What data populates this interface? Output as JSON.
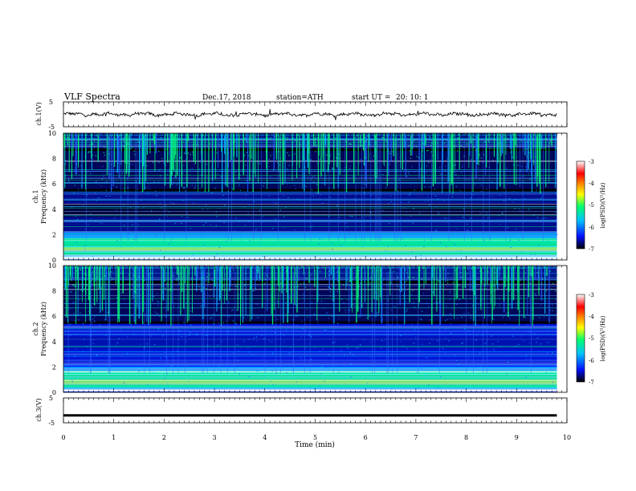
{
  "header": {
    "title": "VLF  Spectra",
    "date": "Dec.17, 2018",
    "station": "station=ATH",
    "start_label": "start  UT  =",
    "start_time": "20: 10: 1"
  },
  "chart_data": [
    {
      "type": "line",
      "panel": "ch1",
      "ylabel": "ch.1(V)",
      "y_ticks": [
        "5",
        "-5"
      ],
      "ylim": [
        -5,
        5
      ],
      "xlim": [
        0,
        10
      ],
      "series": [
        {
          "values_summary": "noisy trace near 0 V from 0 to 9.8 min"
        }
      ]
    },
    {
      "type": "heatmap",
      "panel": "ch1",
      "ylabel": "ch.1",
      "ylabel2": "Frequency (kHz)",
      "y_ticks": [
        "0",
        "2",
        "4",
        "6",
        "8",
        "10"
      ],
      "ylim": [
        0,
        10
      ],
      "xlim": [
        0,
        10
      ],
      "data_end_min": 9.8,
      "colorbar": {
        "label": "log(PSD)(V²/Hz)",
        "ticks": [
          "-3",
          "-4",
          "-5",
          "-6",
          "-7"
        ],
        "range": [
          -7,
          -3
        ],
        "colors": [
          "#000000",
          "#0010ff",
          "#00c0ff",
          "#00ff70",
          "#ffff00",
          "#ff8000",
          "#ff0000",
          "#ffffff"
        ]
      }
    },
    {
      "type": "heatmap",
      "panel": "ch2",
      "ylabel": "ch.2",
      "ylabel2": "Frequency (kHz)",
      "y_ticks": [
        "0",
        "2",
        "4",
        "6",
        "8",
        "10"
      ],
      "ylim": [
        0,
        10
      ],
      "xlim": [
        0,
        10
      ],
      "data_end_min": 9.8,
      "colorbar": {
        "label": "log(PSD)(V²/Hz)",
        "ticks": [
          "-3",
          "-4",
          "-5",
          "-6",
          "-7"
        ],
        "range": [
          -7,
          -3
        ],
        "colors": [
          "#000000",
          "#0010ff",
          "#00c0ff",
          "#00ff70",
          "#ffff00",
          "#ff8000",
          "#ff0000",
          "#ffffff"
        ]
      }
    },
    {
      "type": "line",
      "panel": "ch3",
      "ylabel": "ch.3(V)",
      "y_ticks": [
        "5",
        "-5"
      ],
      "ylim": [
        -5,
        5
      ],
      "xlim": [
        0,
        10
      ],
      "xlabel": "Time  (min)",
      "x_ticks": [
        "0",
        "1",
        "2",
        "3",
        "4",
        "5",
        "6",
        "7",
        "8",
        "9",
        "10"
      ],
      "series": [
        {
          "values_summary": "flat thick trace at about -2 V from 0 to 9.8 min"
        }
      ]
    }
  ]
}
